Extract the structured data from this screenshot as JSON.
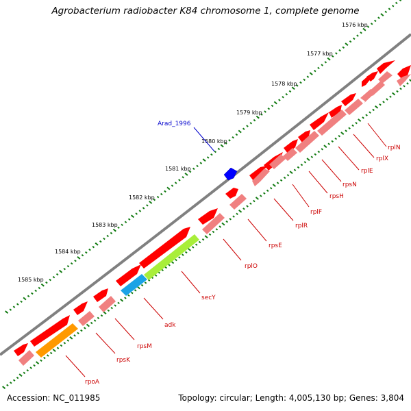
{
  "title": "Agrobacterium radiobacter K84 chromosome 1, complete genome",
  "footer": {
    "accession": "Accession: NC_011985",
    "summary": "Topology: circular; Length: 4,005,130 bp; Genes: 3,804"
  },
  "ruler": {
    "ticks": [
      {
        "label": "1576 kbp",
        "value": 1576
      },
      {
        "label": "1577 kbp",
        "value": 1577
      },
      {
        "label": "1578 kbp",
        "value": 1578
      },
      {
        "label": "1579 kbp",
        "value": 1579
      },
      {
        "label": "1580 kbp",
        "value": 1580
      },
      {
        "label": "1581 kbp",
        "value": 1581
      },
      {
        "label": "1582 kbp",
        "value": 1582
      },
      {
        "label": "1583 kbp",
        "value": 1583
      },
      {
        "label": "1584 kbp",
        "value": 1584
      },
      {
        "label": "1585 kbp",
        "value": 1585
      }
    ]
  },
  "colors": {
    "gene": "#ff0000",
    "cds": "#f08080",
    "forward_gene": "#0000ff",
    "adk": "#1aa3e6",
    "secY": "#a8ee3a",
    "rpoA": "#ff9900",
    "backbone": "#808080",
    "ticks": "#107a10",
    "label_red": "#cc0000",
    "label_blue": "#0000cc"
  },
  "genes": {
    "forward": [
      {
        "name": "Arad_1996",
        "label": "Arad_1996"
      }
    ],
    "reverse": [
      {
        "name": "rplN",
        "label": "rplN"
      },
      {
        "name": "rplX",
        "label": "rplX"
      },
      {
        "name": "rplE",
        "label": "rplE"
      },
      {
        "name": "rpsN",
        "label": "rpsN"
      },
      {
        "name": "rpsH",
        "label": "rpsH"
      },
      {
        "name": "rplF",
        "label": "rplF"
      },
      {
        "name": "rplR",
        "label": "rplR"
      },
      {
        "name": "rpsE",
        "label": "rpsE"
      },
      {
        "name": "rplO",
        "label": "rplO"
      },
      {
        "name": "secY",
        "label": "secY"
      },
      {
        "name": "adk",
        "label": "adk"
      },
      {
        "name": "rpsM",
        "label": "rpsM"
      },
      {
        "name": "rpsK",
        "label": "rpsK"
      },
      {
        "name": "rpoA",
        "label": "rpoA"
      }
    ]
  }
}
